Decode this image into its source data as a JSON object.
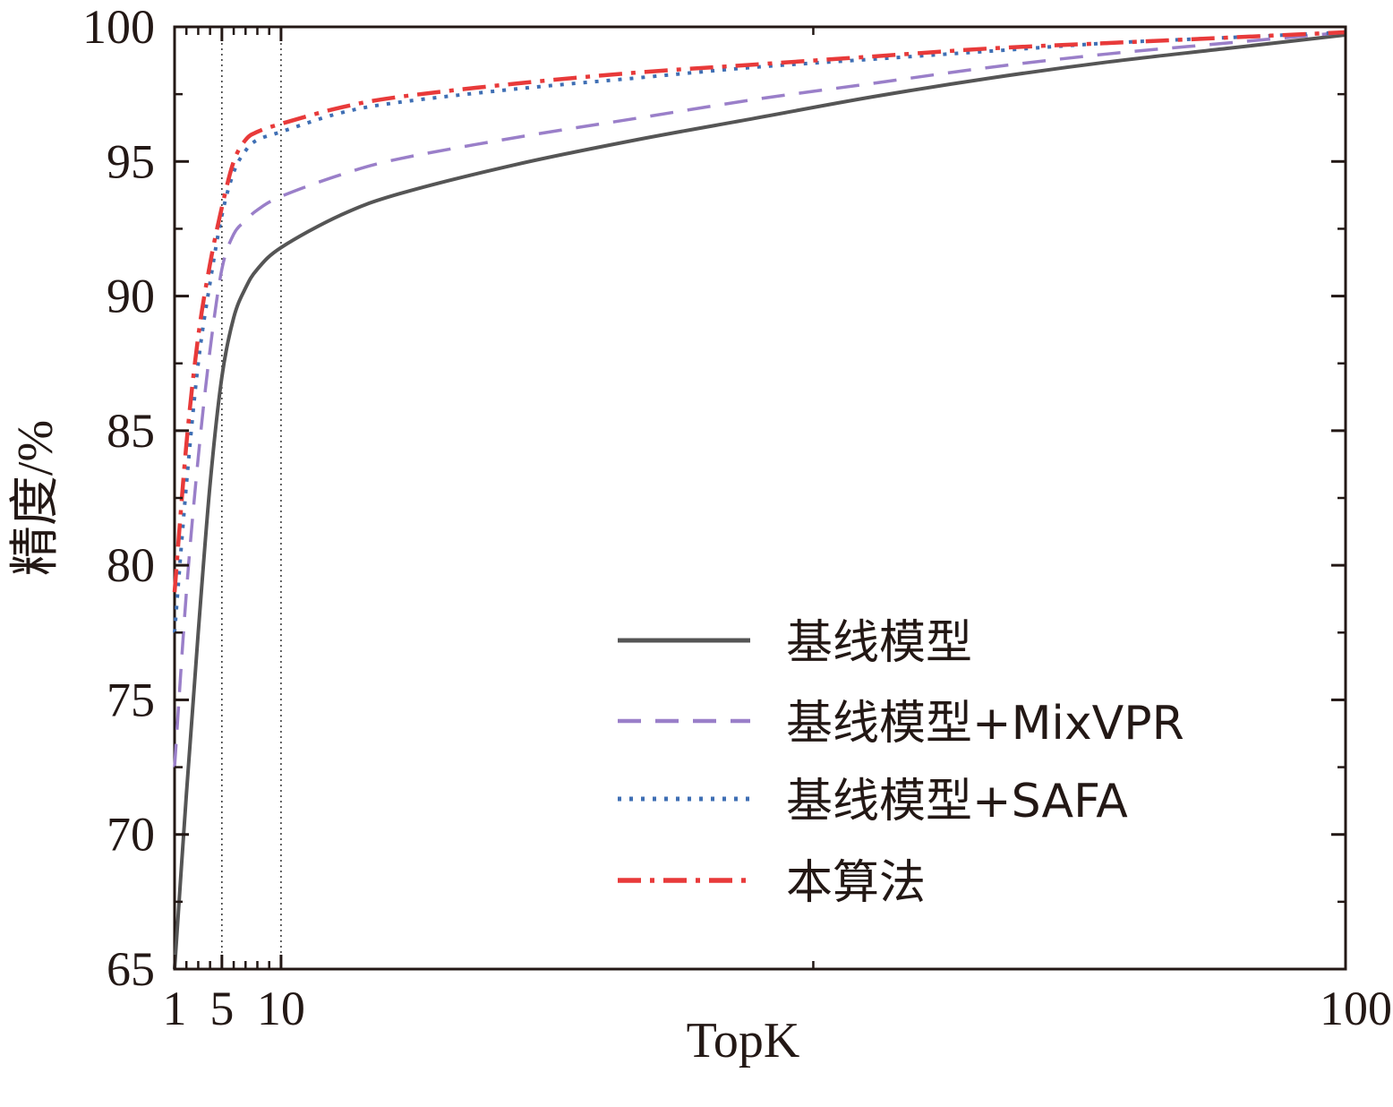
{
  "chart_data": {
    "type": "line",
    "xlabel": "TopK",
    "ylabel": "精度/%",
    "xlim": [
      1,
      100
    ],
    "ylim": [
      65,
      100
    ],
    "x_tick_labels": [
      "1",
      "5",
      "10",
      "100"
    ],
    "x_ticks": [
      1,
      5,
      10,
      100
    ],
    "y_ticks": [
      65,
      70,
      75,
      80,
      85,
      90,
      95,
      100
    ],
    "reference_lines_x": [
      5,
      10
    ],
    "grid": false,
    "legend_position": "lower-right",
    "x": [
      1,
      2,
      3,
      4,
      5,
      6,
      7,
      8,
      10,
      15,
      20,
      30,
      40,
      50,
      60,
      70,
      80,
      90,
      100
    ],
    "series": [
      {
        "name": "基线模型",
        "color": "#555555",
        "style": "solid",
        "values": [
          65.0,
          71.5,
          77.5,
          83.0,
          87.0,
          89.2,
          90.3,
          91.0,
          91.8,
          93.0,
          93.8,
          94.9,
          95.8,
          96.6,
          97.4,
          98.1,
          98.7,
          99.2,
          99.7
        ]
      },
      {
        "name": "基线模型+MixVPR",
        "color": "#9a7fc9",
        "style": "dashed",
        "values": [
          72.5,
          79.0,
          84.0,
          88.0,
          91.0,
          92.3,
          92.8,
          93.2,
          93.7,
          94.5,
          95.1,
          95.9,
          96.6,
          97.3,
          97.9,
          98.5,
          99.0,
          99.4,
          99.8
        ]
      },
      {
        "name": "基线模型+SAFA",
        "color": "#3f6fb4",
        "style": "dotted",
        "values": [
          77.5,
          83.0,
          87.5,
          90.5,
          93.0,
          94.6,
          95.4,
          95.8,
          96.1,
          96.8,
          97.2,
          97.7,
          98.1,
          98.5,
          98.8,
          99.1,
          99.4,
          99.6,
          99.8
        ]
      },
      {
        "name": "本算法",
        "color": "#e83a3a",
        "style": "dashdot",
        "values": [
          79.0,
          84.5,
          88.5,
          91.2,
          93.3,
          95.0,
          95.8,
          96.1,
          96.4,
          97.0,
          97.4,
          97.9,
          98.3,
          98.6,
          98.9,
          99.2,
          99.4,
          99.6,
          99.8
        ]
      }
    ]
  }
}
